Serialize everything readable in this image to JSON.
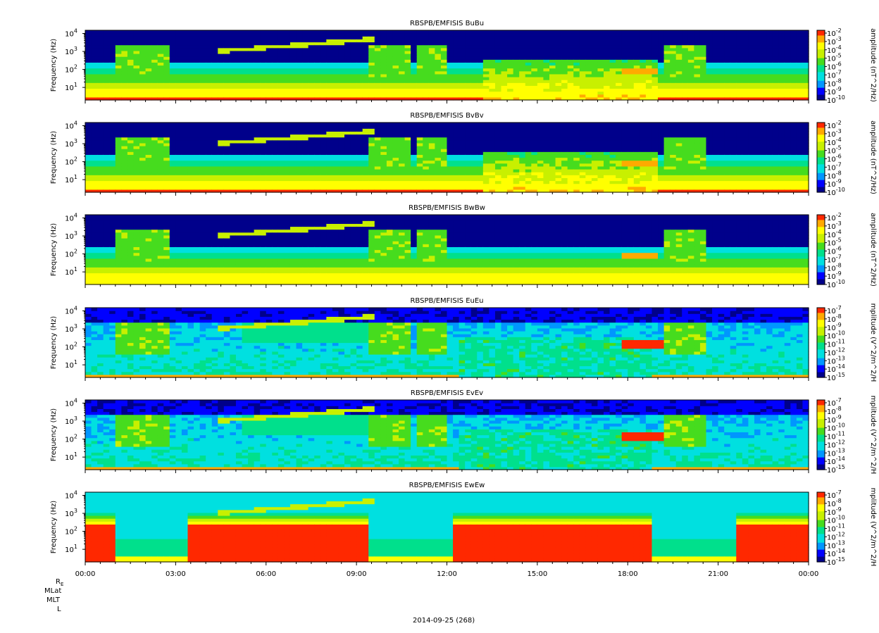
{
  "figure": {
    "date_label": "2014-09-25 (268)",
    "ephemeris_labels": [
      "R",
      "MLat",
      "MLT",
      "L"
    ],
    "ephemeris_subscript": "E",
    "palette": [
      "#000000",
      "#00008b",
      "#0000ff",
      "#0096ff",
      "#00e0e0",
      "#00e08c",
      "#46dc1e",
      "#c8f000",
      "#ffff00",
      "#ffaa00",
      "#ff2800"
    ]
  },
  "chart_data": [
    {
      "type": "heatmap",
      "title": "RBSPB/EMFISIS  BuBu",
      "ylabel": "Frequency (Hz)",
      "ylabel_scale": "log",
      "ylim": [
        2,
        15000
      ],
      "y_ticks": [
        {
          "mant": "10",
          "exp": "1"
        },
        {
          "mant": "10",
          "exp": "2"
        },
        {
          "mant": "10",
          "exp": "3"
        },
        {
          "mant": "10",
          "exp": "4"
        }
      ],
      "colorbar_label": "amplitude (nT^2/Hz)",
      "colorbar_ticks": [
        {
          "mant": "10",
          "exp": "-2"
        },
        {
          "mant": "10",
          "exp": "-3"
        },
        {
          "mant": "10",
          "exp": "-4"
        },
        {
          "mant": "10",
          "exp": "-5"
        },
        {
          "mant": "10",
          "exp": "-6"
        },
        {
          "mant": "10",
          "exp": "-7"
        },
        {
          "mant": "10",
          "exp": "-8"
        },
        {
          "mant": "10",
          "exp": "-9"
        },
        {
          "mant": "10",
          "exp": "-10"
        }
      ],
      "variant": "B"
    },
    {
      "type": "heatmap",
      "title": "RBSPB/EMFISIS  BvBv",
      "ylabel": "Frequency (Hz)",
      "ylabel_scale": "log",
      "ylim": [
        2,
        15000
      ],
      "y_ticks": [
        {
          "mant": "10",
          "exp": "1"
        },
        {
          "mant": "10",
          "exp": "2"
        },
        {
          "mant": "10",
          "exp": "3"
        },
        {
          "mant": "10",
          "exp": "4"
        }
      ],
      "colorbar_label": "amplitude (nT^2/Hz)",
      "colorbar_ticks": [
        {
          "mant": "10",
          "exp": "-2"
        },
        {
          "mant": "10",
          "exp": "-3"
        },
        {
          "mant": "10",
          "exp": "-4"
        },
        {
          "mant": "10",
          "exp": "-5"
        },
        {
          "mant": "10",
          "exp": "-6"
        },
        {
          "mant": "10",
          "exp": "-7"
        },
        {
          "mant": "10",
          "exp": "-8"
        },
        {
          "mant": "10",
          "exp": "-9"
        },
        {
          "mant": "10",
          "exp": "-10"
        }
      ],
      "variant": "B"
    },
    {
      "type": "heatmap",
      "title": "RBSPB/EMFISIS  BwBw",
      "ylabel": "Frequency (Hz)",
      "ylabel_scale": "log",
      "ylim": [
        2,
        15000
      ],
      "y_ticks": [
        {
          "mant": "10",
          "exp": "1"
        },
        {
          "mant": "10",
          "exp": "2"
        },
        {
          "mant": "10",
          "exp": "3"
        },
        {
          "mant": "10",
          "exp": "4"
        }
      ],
      "colorbar_label": "amplitude (nT^2/Hz)",
      "colorbar_ticks": [
        {
          "mant": "10",
          "exp": "-2"
        },
        {
          "mant": "10",
          "exp": "-3"
        },
        {
          "mant": "10",
          "exp": "-4"
        },
        {
          "mant": "10",
          "exp": "-5"
        },
        {
          "mant": "10",
          "exp": "-6"
        },
        {
          "mant": "10",
          "exp": "-7"
        },
        {
          "mant": "10",
          "exp": "-8"
        },
        {
          "mant": "10",
          "exp": "-9"
        },
        {
          "mant": "10",
          "exp": "-10"
        }
      ],
      "variant": "Bw"
    },
    {
      "type": "heatmap",
      "title": "RBSPB/EMFISIS  EuEu",
      "ylabel": "Frequency (Hz)",
      "ylabel_scale": "log",
      "ylim": [
        2,
        15000
      ],
      "y_ticks": [
        {
          "mant": "10",
          "exp": "1"
        },
        {
          "mant": "10",
          "exp": "2"
        },
        {
          "mant": "10",
          "exp": "3"
        },
        {
          "mant": "10",
          "exp": "4"
        }
      ],
      "colorbar_label": "mplitude (V^2/m^2/H",
      "colorbar_ticks": [
        {
          "mant": "10",
          "exp": "-7"
        },
        {
          "mant": "10",
          "exp": "-8"
        },
        {
          "mant": "10",
          "exp": "-9"
        },
        {
          "mant": "10",
          "exp": "-10"
        },
        {
          "mant": "10",
          "exp": "-11"
        },
        {
          "mant": "10",
          "exp": "-12"
        },
        {
          "mant": "10",
          "exp": "-13"
        },
        {
          "mant": "10",
          "exp": "-14"
        },
        {
          "mant": "10",
          "exp": "-15"
        }
      ],
      "variant": "E"
    },
    {
      "type": "heatmap",
      "title": "RBSPB/EMFISIS  EvEv",
      "ylabel": "Frequency (Hz)",
      "ylabel_scale": "log",
      "ylim": [
        2,
        15000
      ],
      "y_ticks": [
        {
          "mant": "10",
          "exp": "1"
        },
        {
          "mant": "10",
          "exp": "2"
        },
        {
          "mant": "10",
          "exp": "3"
        },
        {
          "mant": "10",
          "exp": "4"
        }
      ],
      "colorbar_label": "mplitude (V^2/m^2/H",
      "colorbar_ticks": [
        {
          "mant": "10",
          "exp": "-7"
        },
        {
          "mant": "10",
          "exp": "-8"
        },
        {
          "mant": "10",
          "exp": "-9"
        },
        {
          "mant": "10",
          "exp": "-10"
        },
        {
          "mant": "10",
          "exp": "-11"
        },
        {
          "mant": "10",
          "exp": "-12"
        },
        {
          "mant": "10",
          "exp": "-13"
        },
        {
          "mant": "10",
          "exp": "-14"
        },
        {
          "mant": "10",
          "exp": "-15"
        }
      ],
      "variant": "E"
    },
    {
      "type": "heatmap",
      "title": "RBSPB/EMFISIS  EwEw",
      "ylabel": "Frequency (Hz)",
      "ylabel_scale": "log",
      "ylim": [
        2,
        15000
      ],
      "y_ticks": [
        {
          "mant": "10",
          "exp": "1"
        },
        {
          "mant": "10",
          "exp": "2"
        },
        {
          "mant": "10",
          "exp": "3"
        },
        {
          "mant": "10",
          "exp": "4"
        }
      ],
      "colorbar_label": "mplitude (V^2/m^2/H",
      "colorbar_ticks": [
        {
          "mant": "10",
          "exp": "-7"
        },
        {
          "mant": "10",
          "exp": "-8"
        },
        {
          "mant": "10",
          "exp": "-9"
        },
        {
          "mant": "10",
          "exp": "-10"
        },
        {
          "mant": "10",
          "exp": "-11"
        },
        {
          "mant": "10",
          "exp": "-12"
        },
        {
          "mant": "10",
          "exp": "-13"
        },
        {
          "mant": "10",
          "exp": "-14"
        },
        {
          "mant": "10",
          "exp": "-15"
        }
      ],
      "variant": "Ew"
    }
  ],
  "x_axis": {
    "tick_labels": [
      "00:00",
      "03:00",
      "06:00",
      "09:00",
      "12:00",
      "15:00",
      "18:00",
      "21:00",
      "00:00"
    ],
    "minor_ticks_per_major": 6
  }
}
